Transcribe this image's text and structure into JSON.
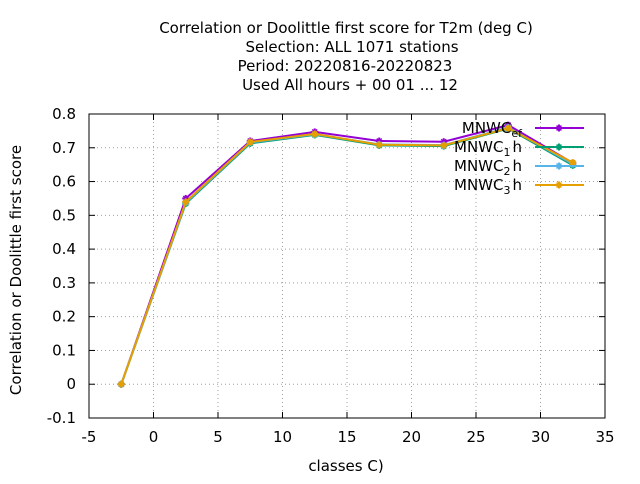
{
  "chart_data": {
    "type": "line",
    "title_lines": [
      "Correlation or Doolittle first score  for T2m (deg C)",
      "Selection: ALL   1071 stations",
      "Period: 20220816-20220823",
      "Used  All hours  + 00 01 ... 12"
    ],
    "xlabel": "classes C)",
    "ylabel": "Correlation or Doolittle first score",
    "xlim": [
      -5,
      35
    ],
    "ylim": [
      -0.1,
      0.8
    ],
    "xticks": [
      -5,
      0,
      5,
      10,
      15,
      20,
      25,
      30,
      35
    ],
    "xtick_labels": [
      "-5",
      "0",
      "5",
      "10",
      "15",
      "20",
      "25",
      "30",
      "35"
    ],
    "yticks": [
      -0.1,
      0,
      0.1,
      0.2,
      0.3,
      0.4,
      0.5,
      0.6,
      0.7,
      0.8
    ],
    "ytick_labels": [
      "-0.1",
      "0",
      "0.1",
      "0.2",
      "0.3",
      "0.4",
      "0.5",
      "0.6",
      "0.7",
      "0.8"
    ],
    "grid": true,
    "legend_position": "top-right",
    "x": [
      -2.5,
      2.5,
      7.5,
      12.5,
      17.5,
      22.5,
      27.5,
      32.5
    ],
    "series": [
      {
        "name": "MNWC_ef",
        "legend_base": "MNWC",
        "legend_sub": "ef",
        "legend_suffix": "",
        "color": "#9400d3",
        "values": [
          0.0,
          0.55,
          0.72,
          0.747,
          0.72,
          0.718,
          0.767,
          0.655
        ]
      },
      {
        "name": "MNWC_1h",
        "legend_base": "MNWC",
        "legend_sub": "1",
        "legend_suffix": "h",
        "color": "#009e73",
        "values": [
          0.0,
          0.535,
          0.713,
          0.738,
          0.707,
          0.705,
          0.757,
          0.648
        ]
      },
      {
        "name": "MNWC_2h",
        "legend_base": "MNWC",
        "legend_sub": "2",
        "legend_suffix": "h",
        "color": "#56b4e9",
        "values": [
          0.0,
          0.538,
          0.716,
          0.74,
          0.71,
          0.708,
          0.76,
          0.652
        ]
      },
      {
        "name": "MNWC_3h",
        "legend_base": "MNWC",
        "legend_sub": "3",
        "legend_suffix": "h",
        "color": "#e69f00",
        "values": [
          0.0,
          0.54,
          0.717,
          0.741,
          0.709,
          0.707,
          0.758,
          0.656
        ]
      }
    ]
  }
}
